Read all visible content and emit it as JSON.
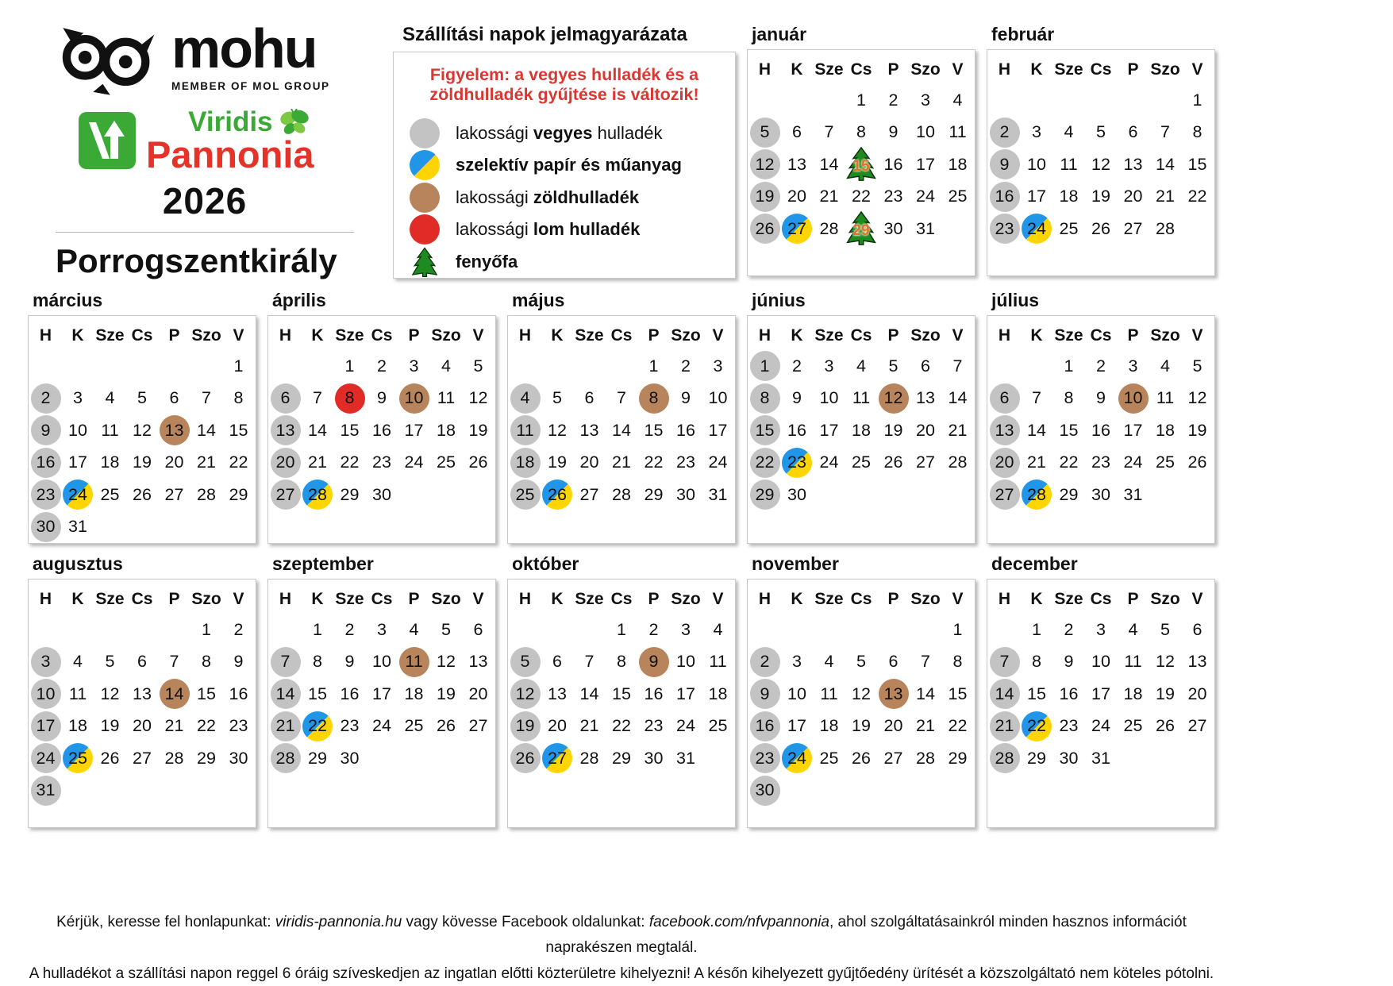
{
  "brand": {
    "mohu": "mohu",
    "mohu_sub": "MEMBER OF MOL GROUP",
    "viridis": "Viridis",
    "pannonia": "Pannonia",
    "year": "2026",
    "settlement": "Porrogszentkirály"
  },
  "legend": {
    "title": "Szállítási napok jelmagyarázata",
    "warning": "Figyelem: a vegyes hulladék és a\nzöldhulladék gyűjtése is változik!",
    "items": [
      {
        "type": "vegyes",
        "icon": "gray-circle-icon",
        "parts": [
          {
            "t": "lakossági "
          },
          {
            "t": "vegyes",
            "b": true
          },
          {
            "t": " hulladék"
          }
        ]
      },
      {
        "type": "szelektiv",
        "icon": "blue-yellow-circle-icon",
        "parts": [
          {
            "t": "szelektív papír és műanyag",
            "b": true
          }
        ]
      },
      {
        "type": "zold",
        "icon": "brown-circle-icon",
        "parts": [
          {
            "t": "lakossági "
          },
          {
            "t": "zöldhulladék",
            "b": true
          }
        ]
      },
      {
        "type": "lom",
        "icon": "red-circle-icon",
        "parts": [
          {
            "t": "lakossági "
          },
          {
            "t": "lom hulladék",
            "b": true
          }
        ]
      },
      {
        "type": "fenyofa",
        "icon": "pine-tree-icon",
        "parts": [
          {
            "t": "fenyőfa",
            "b": true
          }
        ]
      }
    ]
  },
  "calendar": {
    "day_headers": [
      "H",
      "K",
      "Sze",
      "Cs",
      "P",
      "Szo",
      "V"
    ],
    "months": [
      {
        "name": "január",
        "start": 3,
        "days": 31,
        "vegyes": [
          5,
          12,
          19,
          26
        ],
        "szelektiv": [
          27
        ],
        "zold": [],
        "lom": [],
        "fenyofa": [
          15,
          29
        ]
      },
      {
        "name": "február",
        "start": 6,
        "days": 28,
        "vegyes": [
          2,
          9,
          16,
          23
        ],
        "szelektiv": [
          24
        ],
        "zold": [],
        "lom": [],
        "fenyofa": []
      },
      {
        "name": "március",
        "start": 6,
        "days": 31,
        "vegyes": [
          2,
          9,
          16,
          23,
          30
        ],
        "szelektiv": [
          24
        ],
        "zold": [
          13
        ],
        "lom": [],
        "fenyofa": []
      },
      {
        "name": "április",
        "start": 2,
        "days": 30,
        "vegyes": [
          6,
          13,
          20,
          27
        ],
        "szelektiv": [
          28
        ],
        "zold": [
          10
        ],
        "lom": [
          8
        ],
        "fenyofa": []
      },
      {
        "name": "május",
        "start": 4,
        "days": 31,
        "vegyes": [
          4,
          11,
          18,
          25
        ],
        "szelektiv": [
          26
        ],
        "zold": [
          8
        ],
        "lom": [],
        "fenyofa": []
      },
      {
        "name": "június",
        "start": 0,
        "days": 30,
        "vegyes": [
          1,
          8,
          15,
          22,
          29
        ],
        "szelektiv": [
          23
        ],
        "zold": [
          12
        ],
        "lom": [],
        "fenyofa": []
      },
      {
        "name": "július",
        "start": 2,
        "days": 31,
        "vegyes": [
          6,
          13,
          20,
          27
        ],
        "szelektiv": [
          28
        ],
        "zold": [
          10
        ],
        "lom": [],
        "fenyofa": []
      },
      {
        "name": "augusztus",
        "start": 5,
        "days": 31,
        "vegyes": [
          3,
          10,
          17,
          24,
          31
        ],
        "szelektiv": [
          25
        ],
        "zold": [
          14
        ],
        "lom": [],
        "fenyofa": []
      },
      {
        "name": "szeptember",
        "start": 1,
        "days": 30,
        "vegyes": [
          7,
          14,
          21,
          28
        ],
        "szelektiv": [
          22
        ],
        "zold": [
          11
        ],
        "lom": [],
        "fenyofa": []
      },
      {
        "name": "október",
        "start": 3,
        "days": 31,
        "vegyes": [
          5,
          12,
          19,
          26
        ],
        "szelektiv": [
          27
        ],
        "zold": [
          9
        ],
        "lom": [],
        "fenyofa": []
      },
      {
        "name": "november",
        "start": 6,
        "days": 30,
        "vegyes": [
          2,
          9,
          16,
          23,
          30
        ],
        "szelektiv": [
          24
        ],
        "zold": [
          13
        ],
        "lom": [],
        "fenyofa": []
      },
      {
        "name": "december",
        "start": 1,
        "days": 31,
        "vegyes": [
          7,
          14,
          21,
          28
        ],
        "szelektiv": [
          22
        ],
        "zold": [],
        "lom": [],
        "fenyofa": []
      }
    ]
  },
  "footer": {
    "line1_parts": [
      {
        "t": "Kérjük, keresse fel honlapunkat: "
      },
      {
        "t": "viridis-pannonia.hu",
        "i": true
      },
      {
        "t": " vagy kövesse Facebook oldalunkat: "
      },
      {
        "t": "facebook.com/nfvpannonia",
        "i": true
      },
      {
        "t": ", ahol szolgáltatásainkról minden hasznos információt naprakészen megtalál."
      }
    ],
    "line2": "A hulladékot a szállítási napon reggel 6 óráig szíveskedjen az ingatlan előtti közterületre kihelyezni! A későn kihelyezett gyűjtőedény ürítését a közszolgáltató nem köteles pótolni."
  },
  "colors": {
    "vegyes": "#c3c3c3",
    "szelektiv_blue": "#2196e8",
    "szelektiv_yellow": "#ffd500",
    "zold": "#b7845c",
    "lom": "#e12b26",
    "viridis_green": "#3aa935",
    "pannonia_red": "#e5332a",
    "warning_red": "#d93832"
  }
}
